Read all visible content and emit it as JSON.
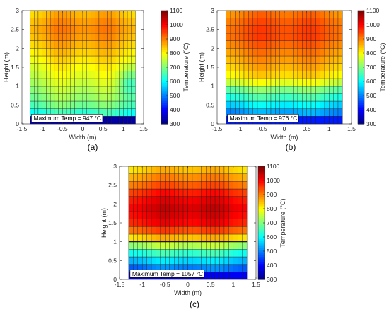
{
  "chart_data": [
    {
      "type": "heatmap",
      "panel_label": "(a)",
      "xlabel": "Width (m)",
      "ylabel": "Height (m)",
      "colorbar_label": "Temperature (°C)",
      "xlim": [
        -1.5,
        1.5
      ],
      "ylim": [
        0,
        3
      ],
      "xticks": [
        "-1.5",
        "-1",
        "-0.5",
        "0",
        "0.5",
        "1",
        "1.5"
      ],
      "yticks": [
        "0",
        "0.5",
        "1",
        "1.5",
        "2",
        "2.5",
        "3"
      ],
      "colorbar_ticks": [
        "300",
        "400",
        "500",
        "600",
        "700",
        "800",
        "900",
        "1000",
        "1100"
      ],
      "clim": [
        300,
        1100
      ],
      "annotation": "Maximum Temp = 947 °C",
      "max_temp": 947,
      "grid_x_range": [
        -1.3,
        1.3
      ],
      "grid_columns": 26,
      "grid_row_heights": [
        0.2,
        0.2,
        0.2,
        0.2,
        0.2,
        0.2,
        0.2,
        0.2,
        0.2,
        0.2,
        0.2,
        0.2,
        0.2,
        0.2,
        0.2
      ],
      "profile_height": [
        0.1,
        0.3,
        0.5,
        0.7,
        0.9,
        1.1,
        1.3,
        1.5,
        1.7,
        1.9,
        2.1,
        2.3,
        2.5,
        2.7,
        2.9
      ],
      "profile_temp": [
        330,
        650,
        700,
        730,
        750,
        770,
        790,
        810,
        830,
        850,
        870,
        890,
        900,
        890,
        870
      ],
      "width_bump": 35,
      "right_dip": 80
    },
    {
      "type": "heatmap",
      "panel_label": "(b)",
      "xlabel": "Width (m)",
      "ylabel": "Height (m)",
      "colorbar_label": "Temperature (°C)",
      "xlim": [
        -1.5,
        1.5
      ],
      "ylim": [
        0,
        3
      ],
      "xticks": [
        "-1.5",
        "-1",
        "-0.5",
        "0",
        "0.5",
        "1",
        "1.5"
      ],
      "yticks": [
        "0",
        "0.5",
        "1",
        "1.5",
        "2",
        "2.5",
        "3"
      ],
      "colorbar_ticks": [
        "300",
        "400",
        "500",
        "600",
        "700",
        "800",
        "900",
        "1000",
        "1100"
      ],
      "clim": [
        300,
        1100
      ],
      "annotation": "Maximum Temp = 976 °C",
      "max_temp": 976,
      "grid_x_range": [
        -1.3,
        1.3
      ],
      "grid_columns": 26,
      "grid_row_heights": [
        0.2,
        0.2,
        0.2,
        0.2,
        0.2,
        0.2,
        0.2,
        0.2,
        0.2,
        0.2,
        0.2,
        0.2,
        0.2,
        0.2,
        0.2
      ],
      "profile_height": [
        0.1,
        0.3,
        0.5,
        0.7,
        0.9,
        1.1,
        1.3,
        1.5,
        1.7,
        1.9,
        2.1,
        2.3,
        2.5,
        2.7,
        2.9
      ],
      "profile_temp": [
        420,
        540,
        600,
        660,
        710,
        790,
        840,
        870,
        890,
        910,
        930,
        950,
        950,
        940,
        920
      ],
      "width_bump": 30,
      "right_dip": 0
    },
    {
      "type": "heatmap",
      "panel_label": "(c)",
      "xlabel": "Width (m)",
      "ylabel": "Height (m)",
      "colorbar_label": "Temperature (°C)",
      "xlim": [
        -1.5,
        1.5
      ],
      "ylim": [
        0,
        3
      ],
      "xticks": [
        "-1.5",
        "-1",
        "-0.5",
        "0",
        "0.5",
        "1",
        "1.5"
      ],
      "yticks": [
        "0",
        "0.5",
        "1",
        "1.5",
        "2",
        "2.5",
        "3"
      ],
      "colorbar_ticks": [
        "300",
        "400",
        "500",
        "600",
        "700",
        "800",
        "900",
        "1000",
        "1100"
      ],
      "clim": [
        300,
        1100
      ],
      "annotation": "Maximum Temp = 1057 °C",
      "max_temp": 1057,
      "grid_x_range": [
        -1.3,
        1.3
      ],
      "grid_columns": 26,
      "grid_row_heights": [
        0.2,
        0.2,
        0.2,
        0.2,
        0.2,
        0.2,
        0.2,
        0.2,
        0.2,
        0.2,
        0.2,
        0.2,
        0.2,
        0.2,
        0.2
      ],
      "profile_height": [
        0.1,
        0.3,
        0.5,
        0.7,
        0.9,
        1.1,
        1.3,
        1.5,
        1.7,
        1.9,
        2.1,
        2.3,
        2.5,
        2.7,
        2.9
      ],
      "profile_temp": [
        390,
        510,
        580,
        650,
        750,
        860,
        950,
        1010,
        1030,
        1040,
        1020,
        990,
        940,
        900,
        860
      ],
      "width_bump": 30,
      "right_dip": 0
    }
  ]
}
